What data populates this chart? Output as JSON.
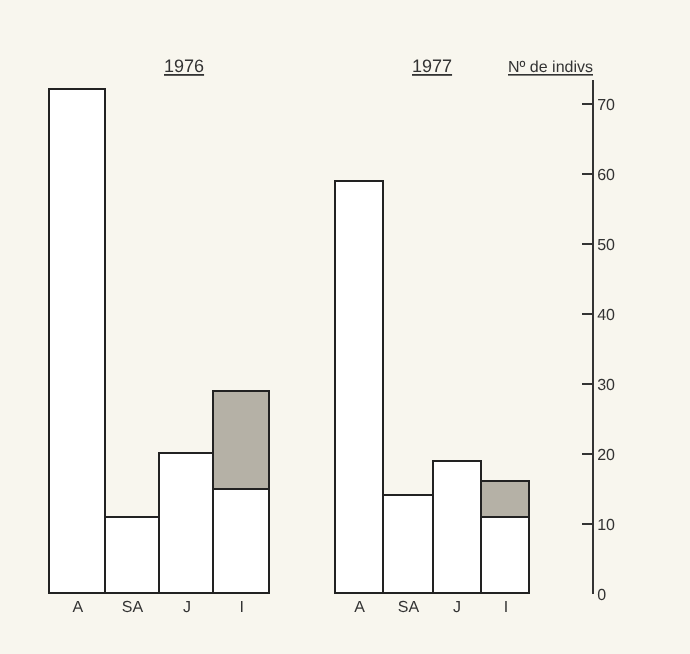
{
  "chart_data": [
    {
      "type": "bar",
      "title": "1976",
      "categories": [
        "A",
        "SA",
        "J",
        "I"
      ],
      "stacked": true,
      "yticks": [
        0,
        10,
        20,
        30,
        40,
        50,
        60,
        70
      ],
      "tick_labels": "x",
      "grid": false,
      "series": [
        {
          "color": "#ffffff",
          "values": [
            72,
            11,
            20,
            15
          ]
        },
        {
          "color": "#b5b1a6",
          "values": [
            null,
            null,
            null,
            14
          ]
        }
      ]
    },
    {
      "type": "bar",
      "title": "1977",
      "categories": [
        "A",
        "SA",
        "J",
        "I"
      ],
      "stacked": true,
      "ylim": [
        0,
        73.5
      ],
      "yticks": [
        0,
        10,
        20,
        30,
        40,
        50,
        60,
        70
      ],
      "ylabel": "Nº de indivs",
      "grid": false,
      "series": [
        {
          "color": "#ffffff",
          "values": [
            59,
            14,
            19,
            11
          ]
        },
        {
          "color": "#b5b1a6",
          "values": [
            null,
            null,
            null,
            5
          ]
        }
      ]
    }
  ]
}
